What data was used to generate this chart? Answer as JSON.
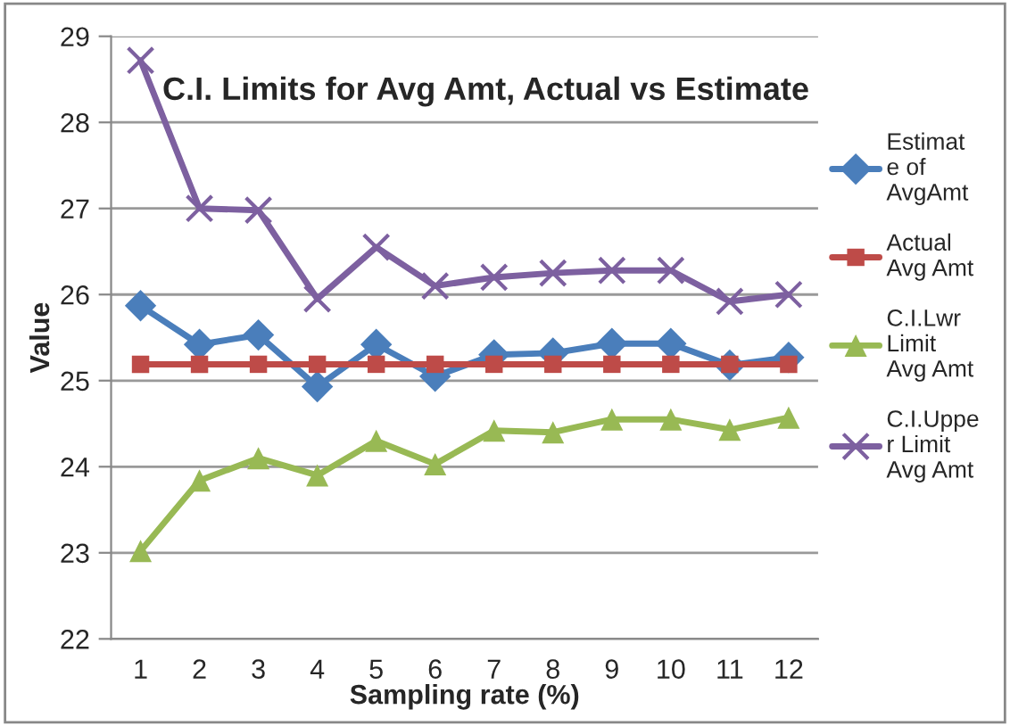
{
  "chart_data": {
    "type": "line",
    "title": "C.I. Limits for Avg Amt, Actual vs Estimate",
    "xlabel": "Sampling rate (%)",
    "ylabel": "Value",
    "categories": [
      "1",
      "2",
      "3",
      "4",
      "5",
      "6",
      "7",
      "8",
      "9",
      "10",
      "11",
      "12"
    ],
    "series": [
      {
        "name": "Estimat\ne of\nAvgAmt",
        "color": "#4a7ebb",
        "marker": "diamond",
        "values": [
          25.87,
          25.42,
          25.53,
          24.93,
          25.42,
          25.05,
          25.3,
          25.32,
          25.43,
          25.43,
          25.18,
          25.27
        ]
      },
      {
        "name": "Actual\nAvg Amt",
        "color": "#be4b48",
        "marker": "square",
        "values": [
          25.19,
          25.19,
          25.19,
          25.19,
          25.19,
          25.19,
          25.19,
          25.19,
          25.19,
          25.19,
          25.19,
          25.19
        ]
      },
      {
        "name": "C.I.Lwr\nLimit\nAvg Amt",
        "color": "#98b954",
        "marker": "triangle",
        "values": [
          23.02,
          23.84,
          24.1,
          23.9,
          24.3,
          24.03,
          24.42,
          24.4,
          24.55,
          24.55,
          24.43,
          24.57
        ]
      },
      {
        "name": "C.I.Uppe\nr Limit\nAvg Amt",
        "color": "#7d60a0",
        "marker": "cross",
        "values": [
          28.72,
          27.0,
          26.98,
          25.95,
          26.55,
          26.1,
          26.2,
          26.25,
          26.28,
          26.28,
          25.92,
          26.0
        ]
      }
    ],
    "ylim": [
      22,
      29
    ],
    "yticks": [
      22,
      23,
      24,
      25,
      26,
      27,
      28,
      29
    ],
    "grid": "y",
    "legend": "right"
  }
}
